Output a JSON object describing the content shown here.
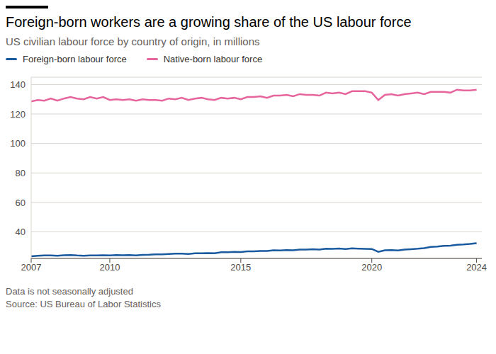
{
  "chart_data": {
    "type": "line",
    "title": "Foreign-born workers are a growing share of the US labour force",
    "subtitle": "US civilian labour force by country of origin, in millions",
    "footnote": "Data is not seasonally adjusted",
    "source": "Source: US Bureau of Labor Statistics",
    "legend": "top-left",
    "grid": true,
    "x": [
      2007,
      2007.25,
      2007.5,
      2007.75,
      2008,
      2008.25,
      2008.5,
      2008.75,
      2009,
      2009.25,
      2009.5,
      2009.75,
      2010,
      2010.25,
      2010.5,
      2010.75,
      2011,
      2011.25,
      2011.5,
      2011.75,
      2012,
      2012.25,
      2012.5,
      2012.75,
      2013,
      2013.25,
      2013.5,
      2013.75,
      2014,
      2014.25,
      2014.5,
      2014.75,
      2015,
      2015.25,
      2015.5,
      2015.75,
      2016,
      2016.25,
      2016.5,
      2016.75,
      2017,
      2017.25,
      2017.5,
      2017.75,
      2018,
      2018.25,
      2018.5,
      2018.75,
      2019,
      2019.25,
      2019.5,
      2019.75,
      2020,
      2020.25,
      2020.5,
      2020.75,
      2021,
      2021.25,
      2021.5,
      2021.75,
      2022,
      2022.25,
      2022.5,
      2022.75,
      2023,
      2023.25,
      2023.5,
      2023.75,
      2024
    ],
    "xlim": [
      2007,
      2024.2
    ],
    "xticks": [
      2007,
      2010,
      2015,
      2020,
      2024
    ],
    "ylim": [
      22,
      145
    ],
    "yticks": [
      40,
      60,
      80,
      100,
      120,
      140
    ],
    "series": [
      {
        "name": "Foreign-born labour force",
        "color": "#1a5a9e",
        "values": [
          23.5,
          23.8,
          24.0,
          24.0,
          23.8,
          24.2,
          24.3,
          24.0,
          23.8,
          24.0,
          24.0,
          24.2,
          24.0,
          24.3,
          24.2,
          24.3,
          24.0,
          24.4,
          24.5,
          24.8,
          24.8,
          25.0,
          25.2,
          25.2,
          25.0,
          25.5,
          25.5,
          25.6,
          25.5,
          26.2,
          26.2,
          26.4,
          26.3,
          26.8,
          26.8,
          27.0,
          27.0,
          27.5,
          27.4,
          27.6,
          27.5,
          28.0,
          28.0,
          28.2,
          28.0,
          28.6,
          28.5,
          28.7,
          28.4,
          28.8,
          28.6,
          28.5,
          28.4,
          26.5,
          27.5,
          27.6,
          27.4,
          28.0,
          28.3,
          28.6,
          29.0,
          29.8,
          30.0,
          30.5,
          30.6,
          31.3,
          31.5,
          31.8,
          32.3
        ]
      },
      {
        "name": "Native-born labour force",
        "color": "#e6659c",
        "values": [
          128.5,
          129.5,
          129.0,
          130.5,
          129.0,
          130.5,
          131.5,
          130.5,
          130.0,
          131.5,
          130.5,
          131.5,
          129.5,
          130.0,
          129.5,
          130.0,
          129.0,
          130.0,
          129.5,
          129.5,
          129.0,
          130.5,
          130.0,
          131.0,
          129.5,
          130.5,
          131.0,
          130.0,
          129.5,
          131.0,
          130.5,
          131.0,
          130.0,
          131.5,
          131.5,
          132.0,
          131.0,
          132.5,
          132.5,
          133.0,
          132.0,
          133.5,
          133.0,
          133.0,
          132.5,
          134.5,
          134.0,
          134.5,
          133.5,
          135.5,
          135.5,
          135.5,
          134.5,
          129.5,
          133.0,
          133.5,
          132.5,
          133.5,
          134.0,
          134.5,
          133.5,
          135.0,
          135.0,
          135.0,
          134.5,
          136.5,
          136.0,
          136.0,
          136.5
        ]
      }
    ]
  }
}
